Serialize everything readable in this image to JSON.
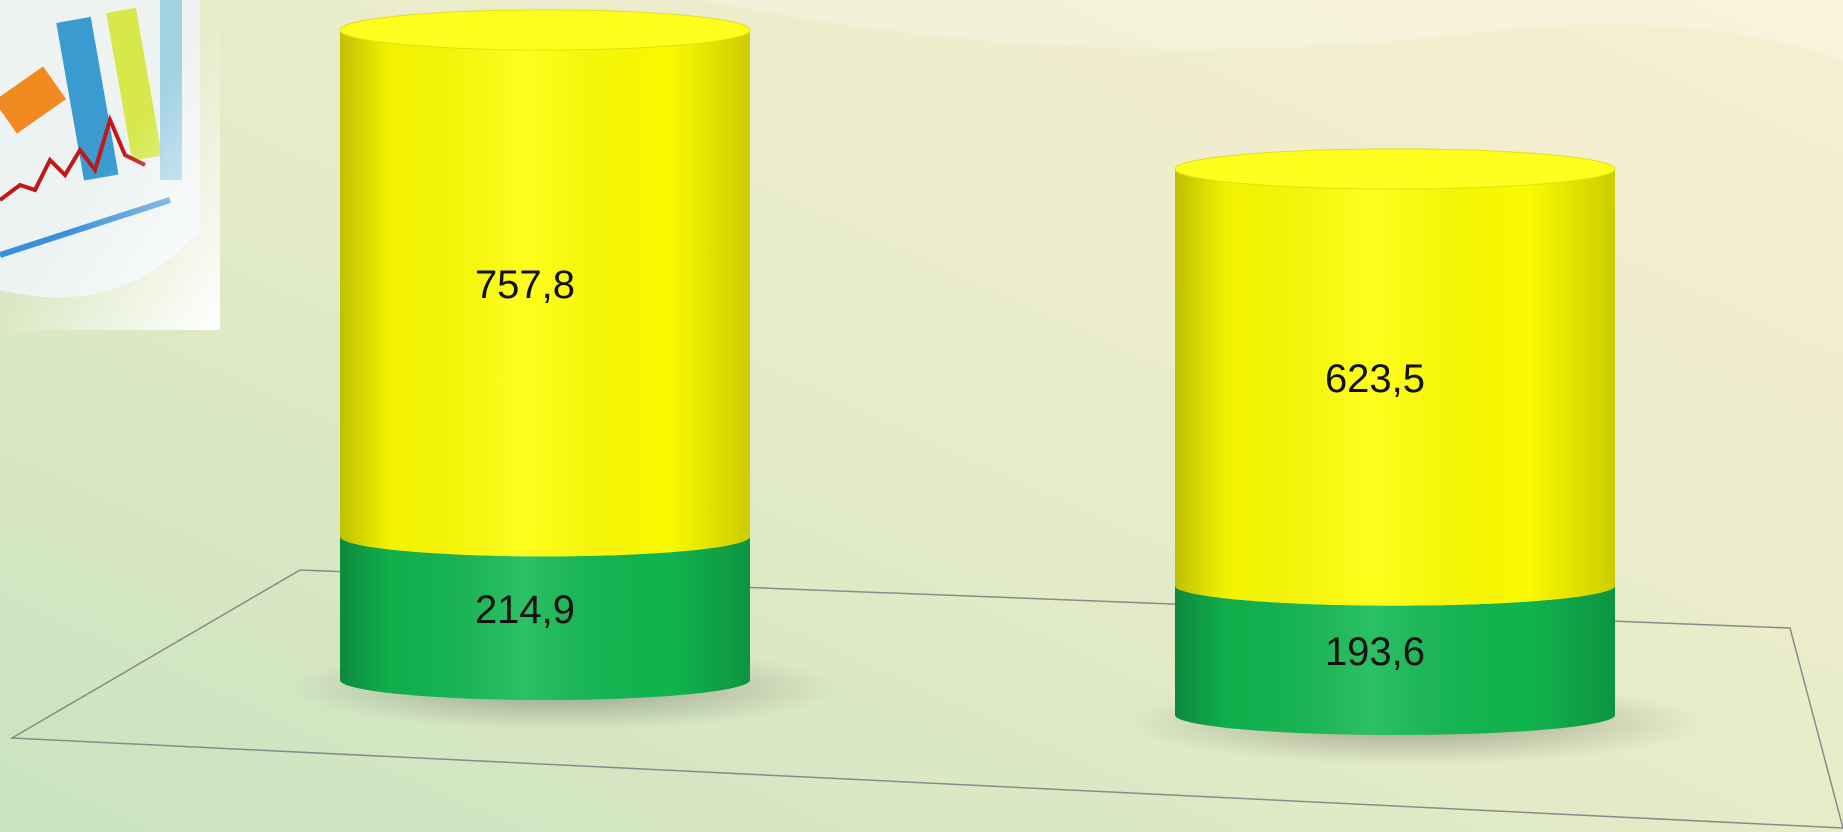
{
  "chart_data": {
    "type": "stacked-cylinder",
    "categories": [
      null,
      null
    ],
    "series": [
      {
        "color": "#10b850",
        "values": [
          214.9,
          193.6
        ],
        "value_labels": [
          "214,9",
          "193,6"
        ]
      },
      {
        "color": "#ffff00",
        "values": [
          757.8,
          623.5
        ],
        "value_labels": [
          "757,8",
          "623,5"
        ]
      }
    ]
  }
}
